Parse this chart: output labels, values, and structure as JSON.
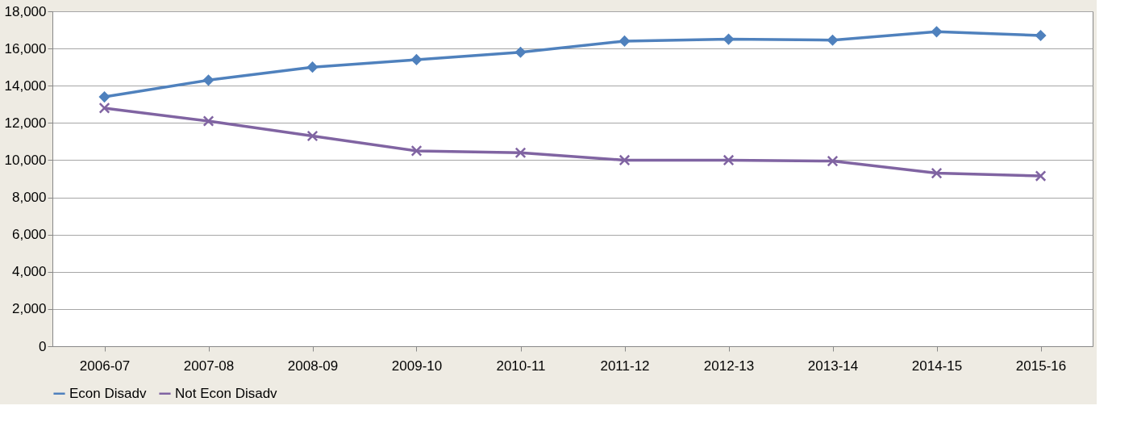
{
  "chart_data": {
    "type": "line",
    "categories": [
      "2006-07",
      "2007-08",
      "2008-09",
      "2009-10",
      "2010-11",
      "2011-12",
      "2012-13",
      "2013-14",
      "2014-15",
      "2015-16"
    ],
    "series": [
      {
        "name": "Econ Disadv",
        "color": "#4f81bd",
        "marker": "diamond",
        "values": [
          13400,
          14300,
          15000,
          15400,
          15800,
          16400,
          16500,
          16450,
          16900,
          16700
        ]
      },
      {
        "name": "Not Econ Disadv",
        "color": "#8064a2",
        "marker": "cross",
        "values": [
          12800,
          12100,
          11300,
          10500,
          10400,
          10000,
          10000,
          9950,
          9300,
          9150
        ]
      }
    ],
    "ylim": [
      0,
      18000
    ],
    "yticks": [
      0,
      {
        "value": 2000,
        "label": "2,000"
      },
      {
        "value": 4000,
        "label": "4,000"
      },
      {
        "value": 6000,
        "label": "6,000"
      },
      {
        "value": 8000,
        "label": "8,000"
      },
      {
        "value": 10000,
        "label": "10,000"
      },
      {
        "value": 12000,
        "label": "12,000"
      },
      {
        "value": 14000,
        "label": "14,000"
      },
      {
        "value": 16000,
        "label": "16,000"
      },
      {
        "value": 18000,
        "label": "18,000"
      }
    ],
    "grid": "y",
    "legend": "bottom",
    "line_style": "solid"
  }
}
